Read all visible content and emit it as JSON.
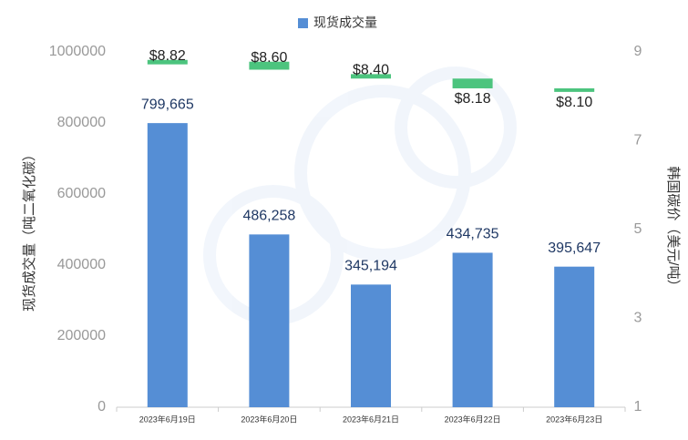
{
  "chart_data": {
    "type": "bar",
    "legend": "现货成交量",
    "y_label": "现货成交量（吨二氧化碳）",
    "y2_label": "韩国碳价（美元/吨）",
    "categories": [
      "2023年6月19日",
      "2023年6月20日",
      "2023年6月21日",
      "2023年6月22日",
      "2023年6月23日"
    ],
    "series": [
      {
        "name": "现货成交量",
        "color": "#558ed5",
        "values": [
          799665,
          486258,
          345194,
          434735,
          395647
        ],
        "value_labels": [
          "799,665",
          "486,258",
          "345,194",
          "434,735",
          "395,647"
        ]
      }
    ],
    "price": {
      "axis": "y2",
      "color": "#4cc47e",
      "open": [
        8.72,
        8.78,
        8.5,
        8.4,
        8.18
      ],
      "close": [
        8.82,
        8.6,
        8.4,
        8.18,
        8.1
      ],
      "value_labels": [
        "$8.82",
        "$8.60",
        "$8.40",
        "$8.18",
        "$8.10"
      ]
    },
    "ylim": [
      0,
      1000000
    ],
    "yticks": [
      0,
      200000,
      400000,
      600000,
      800000,
      1000000
    ],
    "y2lim": [
      1,
      9
    ],
    "y2ticks": [
      1,
      3,
      5,
      7,
      9
    ]
  }
}
